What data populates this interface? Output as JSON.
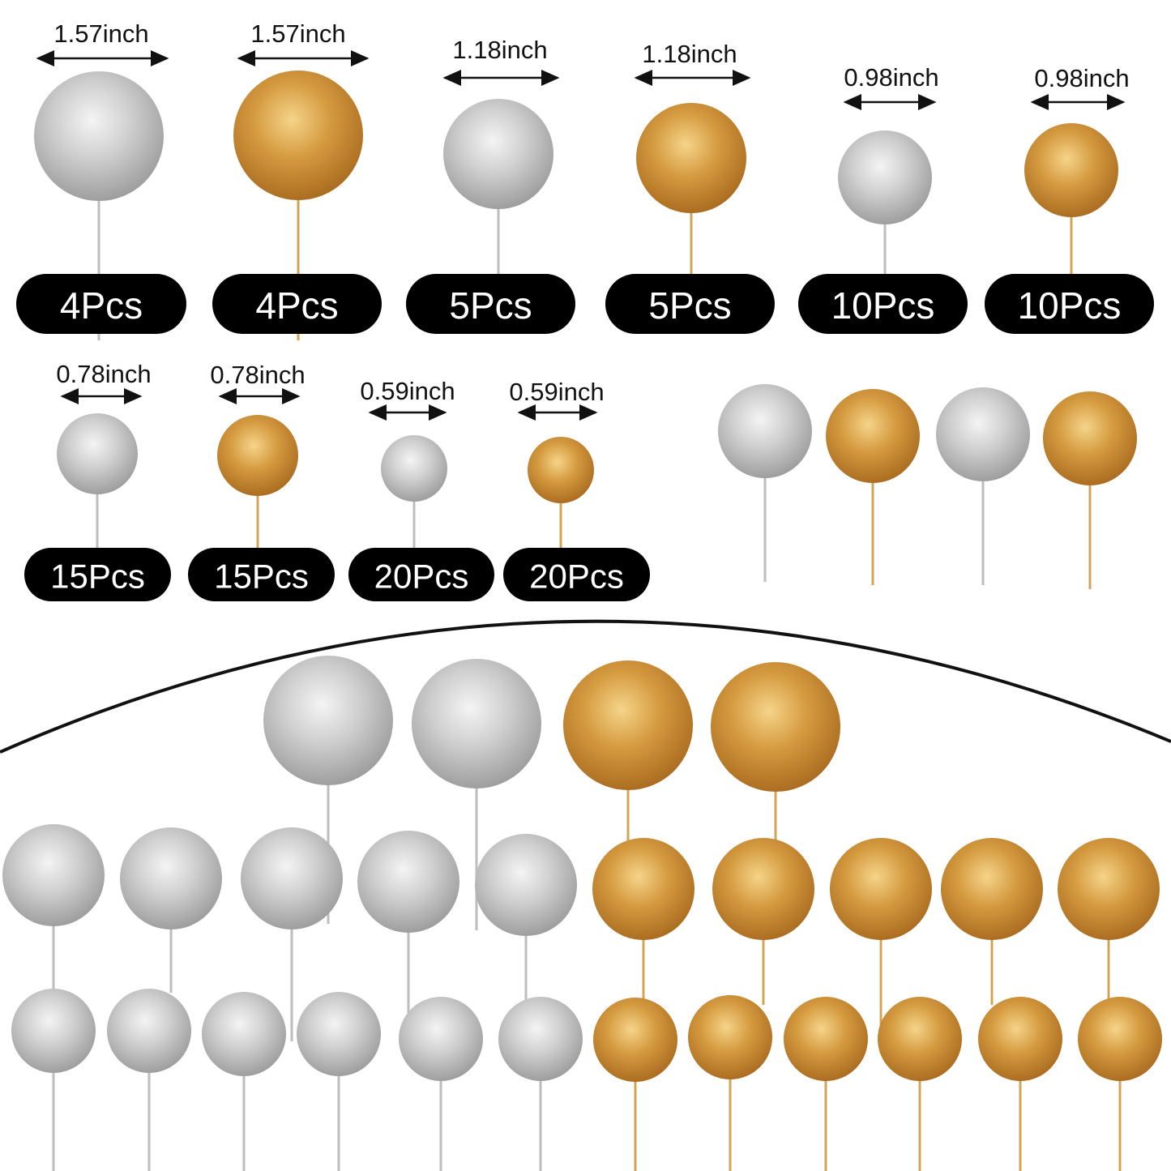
{
  "colors": {
    "silver": "#c9c9c9",
    "gold": "#d49a3e",
    "pill": "#000000",
    "arrow": "#111111"
  },
  "sizes": [
    {
      "dimension": "1.57inch",
      "count": "4Pcs",
      "finish": "silver"
    },
    {
      "dimension": "1.57inch",
      "count": "4Pcs",
      "finish": "gold"
    },
    {
      "dimension": "1.18inch",
      "count": "5Pcs",
      "finish": "silver"
    },
    {
      "dimension": "1.18inch",
      "count": "5Pcs",
      "finish": "gold"
    },
    {
      "dimension": "0.98inch",
      "count": "10Pcs",
      "finish": "silver"
    },
    {
      "dimension": "0.98inch",
      "count": "10Pcs",
      "finish": "gold"
    },
    {
      "dimension": "0.78inch",
      "count": "15Pcs",
      "finish": "silver"
    },
    {
      "dimension": "0.78inch",
      "count": "15Pcs",
      "finish": "gold"
    },
    {
      "dimension": "0.59inch",
      "count": "20Pcs",
      "finish": "silver"
    },
    {
      "dimension": "0.59inch",
      "count": "20Pcs",
      "finish": "gold"
    }
  ]
}
